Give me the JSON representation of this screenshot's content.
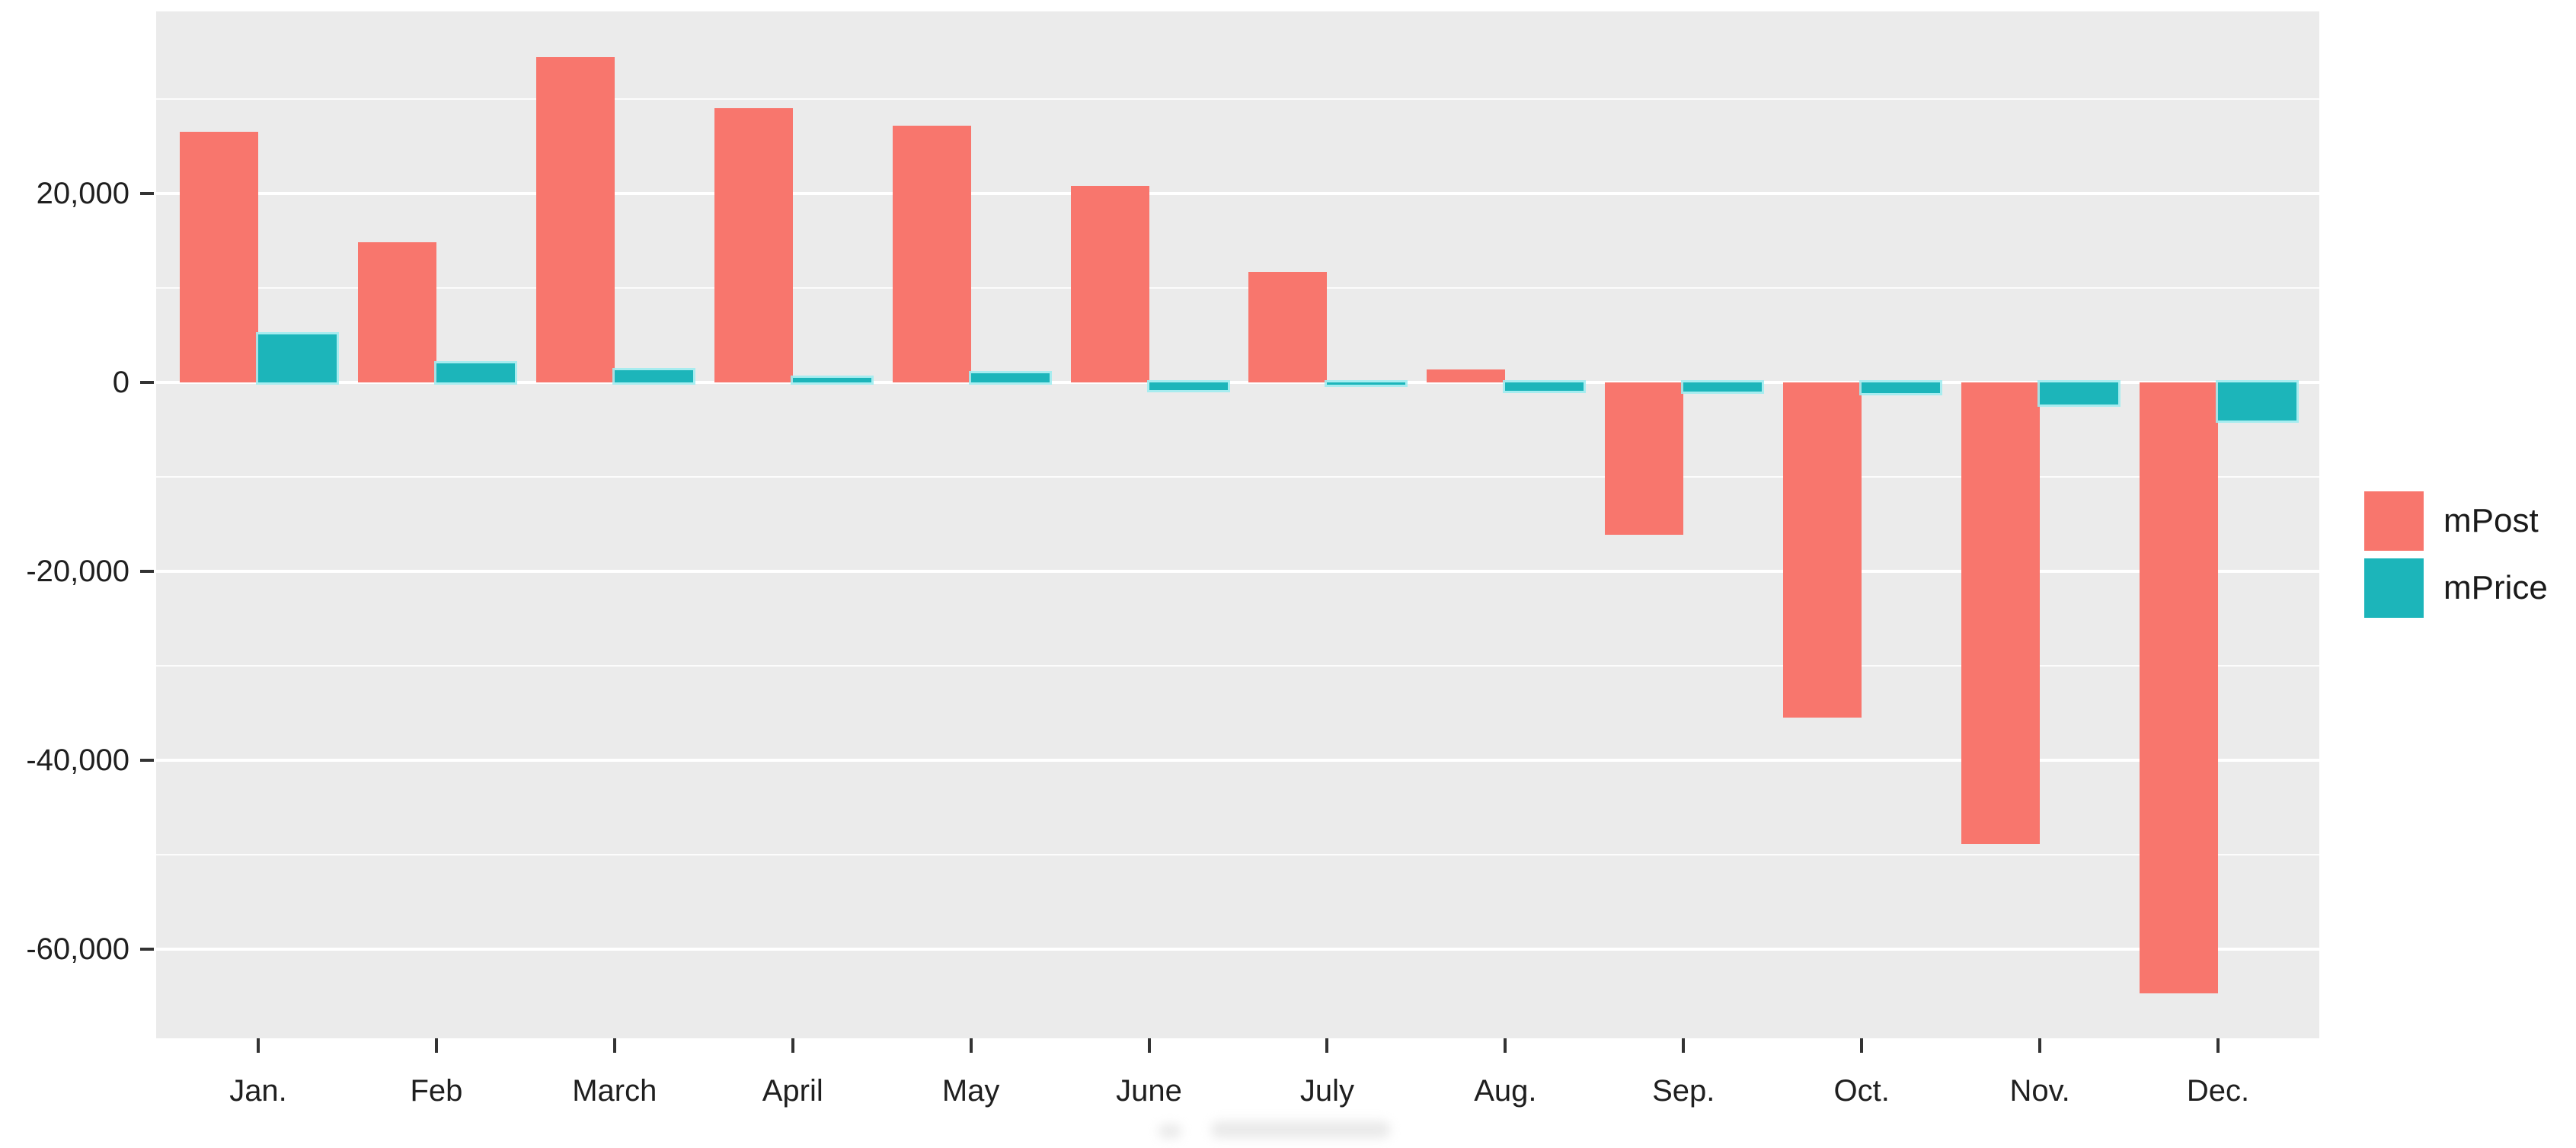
{
  "chart_data": {
    "type": "bar",
    "title": "",
    "xlabel": "",
    "ylabel": "",
    "categories": [
      "Jan.",
      "Feb",
      "March",
      "April",
      "May",
      "June",
      "July",
      "Aug.",
      "Sep.",
      "Oct.",
      "Nov.",
      "Dec."
    ],
    "series": [
      {
        "name": "mPost",
        "color": "#F8766D",
        "values": [
          26500,
          14800,
          34400,
          29000,
          27200,
          20800,
          11700,
          1400,
          -16100,
          -35500,
          -48900,
          -64700
        ]
      },
      {
        "name": "mPrice",
        "color": "#1CB5BA",
        "values": [
          5100,
          2000,
          1300,
          500,
          1000,
          -800,
          -250,
          -900,
          -1000,
          -1100,
          -2300,
          -4000
        ]
      }
    ],
    "y_axis": {
      "major_ticks": [
        {
          "value": 20000,
          "label": "20,000"
        },
        {
          "value": 0,
          "label": "0"
        },
        {
          "value": -20000,
          "label": "-20,000"
        },
        {
          "value": -40000,
          "label": "-40,000"
        },
        {
          "value": -60000,
          "label": "-60,000"
        }
      ],
      "minor_ticks": [
        30000,
        10000,
        -10000,
        -30000,
        -50000
      ],
      "range": [
        -69500,
        39300
      ]
    },
    "legend": {
      "position": "right",
      "items": [
        "mPost",
        "mPrice"
      ]
    },
    "grid": "on",
    "panel_background": "#EBEBEB",
    "gridline_color": "#FFFFFF",
    "axis_text_color": "#1f1f1f"
  }
}
